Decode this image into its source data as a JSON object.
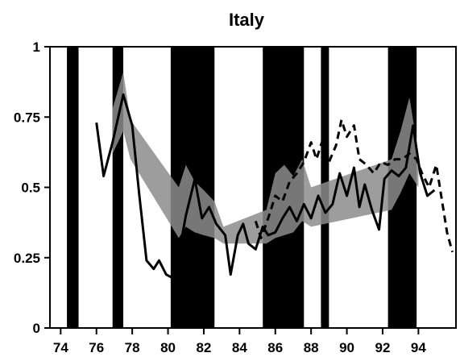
{
  "chart_data": {
    "type": "line",
    "title": "Italy",
    "xlabel": "",
    "ylabel": "",
    "xlim": [
      73.4,
      96.1
    ],
    "ylim": [
      0,
      1
    ],
    "x_ticks": [
      74,
      76,
      78,
      80,
      82,
      84,
      86,
      88,
      90,
      92,
      94
    ],
    "x_tick_labels": [
      "74",
      "76",
      "78",
      "80",
      "82",
      "84",
      "86",
      "88",
      "90",
      "92",
      "94"
    ],
    "y_ticks": [
      0,
      0.25,
      0.5,
      0.75,
      1
    ],
    "y_tick_labels": [
      "0",
      "0.25",
      "0.5",
      "0.75",
      "1"
    ],
    "grid": false,
    "legend": "none",
    "shaded_periods": [
      [
        74.35,
        75.0
      ],
      [
        76.9,
        77.5
      ],
      [
        80.15,
        82.6
      ],
      [
        85.3,
        87.6
      ],
      [
        88.55,
        89.0
      ],
      [
        92.3,
        93.9
      ]
    ],
    "band": {
      "color": "#8c8c8c",
      "upper": [
        [
          76.9,
          0.78
        ],
        [
          77.5,
          0.91
        ],
        [
          77.9,
          0.74
        ],
        [
          80.6,
          0.5
        ],
        [
          81.0,
          0.58
        ],
        [
          81.5,
          0.52
        ],
        [
          82.0,
          0.49
        ],
        [
          82.6,
          0.45
        ],
        [
          83.1,
          0.36
        ],
        [
          85.5,
          0.42
        ],
        [
          86.0,
          0.55
        ],
        [
          86.5,
          0.58
        ],
        [
          87.0,
          0.54
        ],
        [
          87.5,
          0.6
        ],
        [
          88.0,
          0.5
        ],
        [
          92.5,
          0.6
        ],
        [
          93.0,
          0.7
        ],
        [
          93.5,
          0.82
        ],
        [
          94.0,
          0.62
        ]
      ],
      "lower": [
        [
          94.0,
          0.5
        ],
        [
          93.5,
          0.55
        ],
        [
          93.0,
          0.48
        ],
        [
          92.5,
          0.42
        ],
        [
          88.0,
          0.36
        ],
        [
          87.5,
          0.38
        ],
        [
          87.0,
          0.34
        ],
        [
          86.5,
          0.33
        ],
        [
          86.0,
          0.32
        ],
        [
          85.5,
          0.3
        ],
        [
          83.1,
          0.3
        ],
        [
          82.6,
          0.32
        ],
        [
          82.0,
          0.33
        ],
        [
          81.5,
          0.34
        ],
        [
          81.0,
          0.36
        ],
        [
          80.6,
          0.32
        ],
        [
          77.9,
          0.6
        ],
        [
          77.5,
          0.7
        ],
        [
          76.9,
          0.62
        ]
      ]
    },
    "series": [
      {
        "style": "solid",
        "color": "#000000",
        "points": [
          [
            76.0,
            0.73
          ],
          [
            76.4,
            0.54
          ],
          [
            76.9,
            0.66
          ],
          [
            77.5,
            0.83
          ],
          [
            78.0,
            0.72
          ],
          [
            78.4,
            0.47
          ],
          [
            78.8,
            0.24
          ],
          [
            79.2,
            0.21
          ],
          [
            79.5,
            0.24
          ],
          [
            79.9,
            0.19
          ],
          [
            80.2,
            0.18
          ],
          [
            80.6,
            0.26
          ],
          [
            81.0,
            0.4
          ],
          [
            81.5,
            0.53
          ],
          [
            81.9,
            0.39
          ],
          [
            82.3,
            0.43
          ],
          [
            82.7,
            0.37
          ],
          [
            83.2,
            0.33
          ],
          [
            83.5,
            0.19
          ],
          [
            83.9,
            0.33
          ],
          [
            84.2,
            0.37
          ],
          [
            84.5,
            0.3
          ],
          [
            84.9,
            0.28
          ],
          [
            85.3,
            0.36
          ],
          [
            85.6,
            0.33
          ],
          [
            86.0,
            0.34
          ],
          [
            86.4,
            0.39
          ],
          [
            86.8,
            0.43
          ],
          [
            87.2,
            0.38
          ],
          [
            87.6,
            0.44
          ],
          [
            88.0,
            0.39
          ],
          [
            88.4,
            0.47
          ],
          [
            88.8,
            0.41
          ],
          [
            89.2,
            0.44
          ],
          [
            89.6,
            0.55
          ],
          [
            90.0,
            0.47
          ],
          [
            90.4,
            0.57
          ],
          [
            90.7,
            0.43
          ],
          [
            91.0,
            0.51
          ],
          [
            91.4,
            0.42
          ],
          [
            91.8,
            0.35
          ],
          [
            92.1,
            0.53
          ],
          [
            92.5,
            0.56
          ],
          [
            92.9,
            0.54
          ],
          [
            93.3,
            0.57
          ],
          [
            93.7,
            0.72
          ],
          [
            94.1,
            0.55
          ],
          [
            94.5,
            0.47
          ],
          [
            94.9,
            0.49
          ]
        ]
      },
      {
        "style": "dashed",
        "color": "#000000",
        "points": [
          [
            84.9,
            0.38
          ],
          [
            85.2,
            0.32
          ],
          [
            85.6,
            0.39
          ],
          [
            86.0,
            0.47
          ],
          [
            86.4,
            0.45
          ],
          [
            86.8,
            0.52
          ],
          [
            87.2,
            0.55
          ],
          [
            87.6,
            0.59
          ],
          [
            88.0,
            0.66
          ],
          [
            88.3,
            0.6
          ],
          [
            88.7,
            0.68
          ],
          [
            89.0,
            0.59
          ],
          [
            89.4,
            0.65
          ],
          [
            89.7,
            0.74
          ],
          [
            90.0,
            0.68
          ],
          [
            90.4,
            0.72
          ],
          [
            90.7,
            0.6
          ],
          [
            91.1,
            0.58
          ],
          [
            91.5,
            0.55
          ],
          [
            91.9,
            0.59
          ],
          [
            92.3,
            0.58
          ],
          [
            92.7,
            0.6
          ],
          [
            93.1,
            0.6
          ],
          [
            93.5,
            0.62
          ],
          [
            93.9,
            0.6
          ],
          [
            94.2,
            0.55
          ],
          [
            94.6,
            0.5
          ],
          [
            95.0,
            0.58
          ],
          [
            95.3,
            0.46
          ],
          [
            95.6,
            0.34
          ],
          [
            95.9,
            0.27
          ]
        ]
      }
    ]
  }
}
